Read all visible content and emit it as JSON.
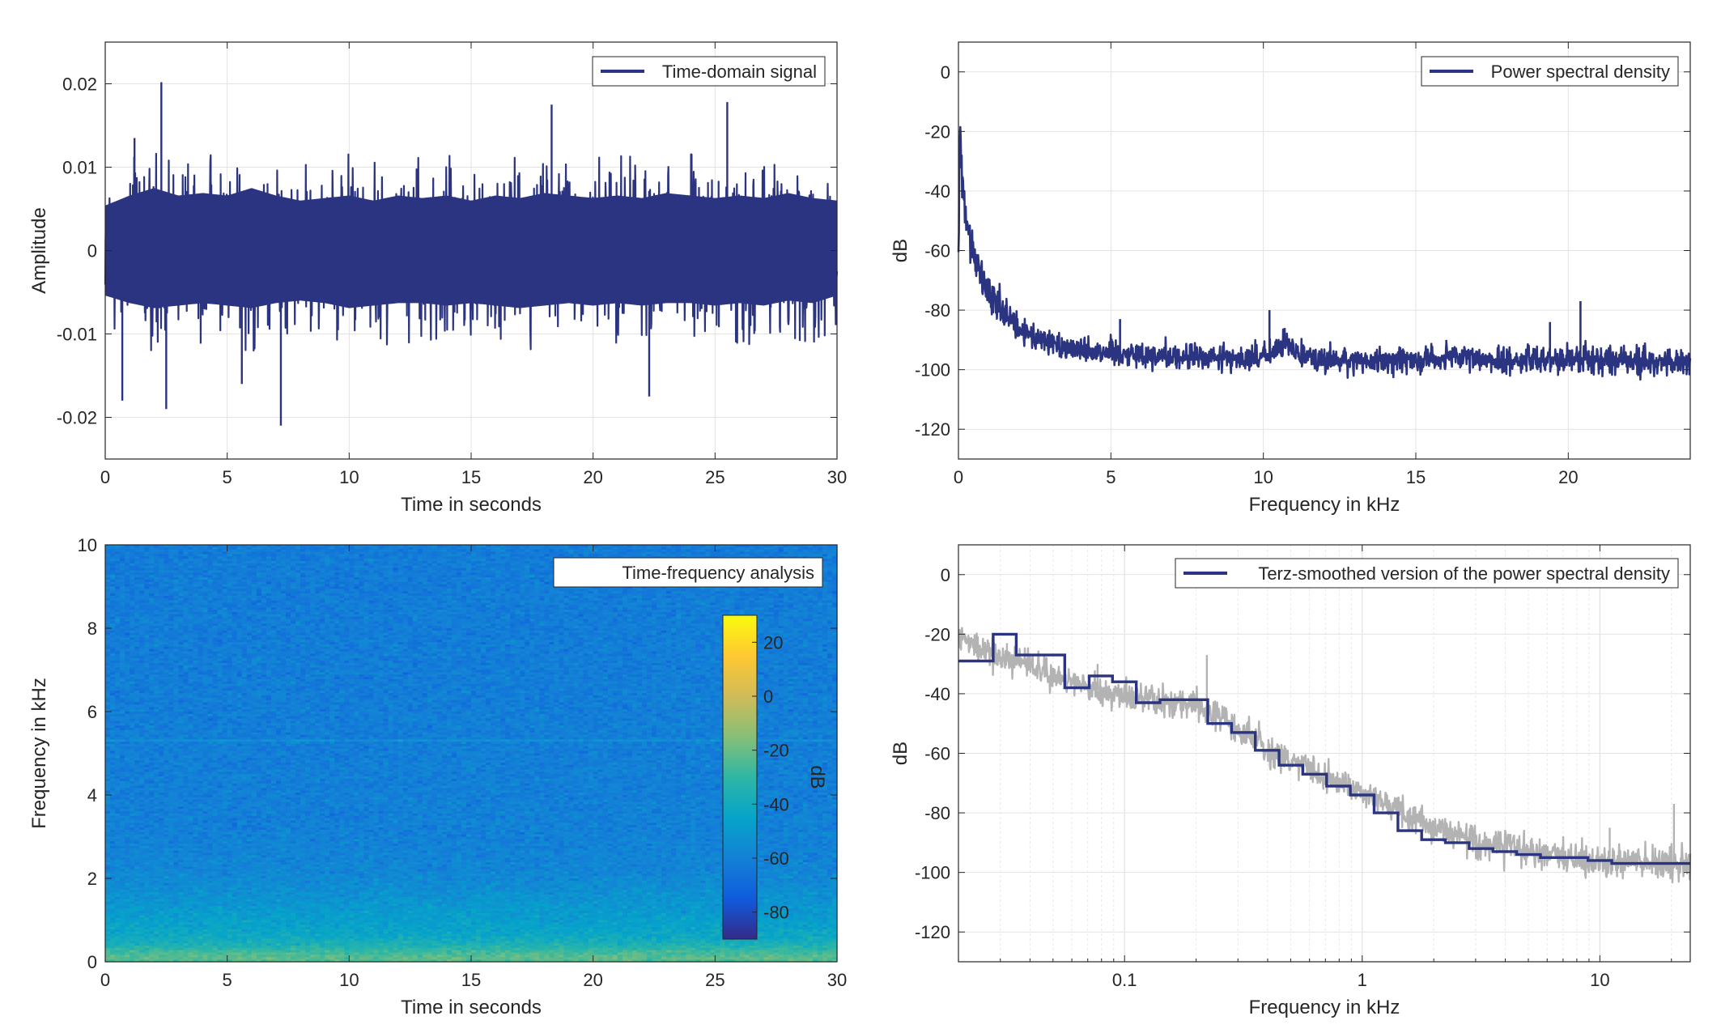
{
  "chart_data": [
    {
      "type": "line",
      "id": "time-domain",
      "title": "",
      "xlabel": "Time in seconds",
      "ylabel": "Amplitude",
      "xlim": [
        0,
        30
      ],
      "ylim": [
        -0.025,
        0.025
      ],
      "xticks": [
        0,
        5,
        10,
        15,
        20,
        25,
        30
      ],
      "xtick_labels": [
        "0",
        "5",
        "10",
        "15",
        "20",
        "25",
        "30"
      ],
      "yticks": [
        -0.02,
        -0.01,
        0,
        0.01,
        0.02
      ],
      "ytick_labels": [
        "-0.02",
        "-0.01",
        "0",
        "0.01",
        "0.02"
      ],
      "grid": true,
      "legend_position": "top-right",
      "series": [
        {
          "name": "Time-domain signal",
          "color": "#2b3480",
          "envelope_x": [
            0,
            1,
            2,
            3,
            4,
            5,
            6,
            7,
            8,
            9,
            10,
            11,
            12,
            13,
            14,
            15,
            16,
            17,
            18,
            19,
            20,
            21,
            22,
            23,
            24,
            25,
            26,
            27,
            28,
            29,
            30
          ],
          "envelope_upper": [
            0.009,
            0.011,
            0.0125,
            0.011,
            0.0115,
            0.011,
            0.0125,
            0.011,
            0.01,
            0.0105,
            0.011,
            0.01,
            0.011,
            0.0105,
            0.011,
            0.01,
            0.011,
            0.0105,
            0.0115,
            0.011,
            0.0105,
            0.011,
            0.0105,
            0.0115,
            0.011,
            0.0105,
            0.011,
            0.0105,
            0.0115,
            0.0105,
            0.01
          ],
          "envelope_lower": [
            -0.009,
            -0.0105,
            -0.0115,
            -0.011,
            -0.0105,
            -0.011,
            -0.0115,
            -0.0105,
            -0.01,
            -0.0105,
            -0.0115,
            -0.011,
            -0.0105,
            -0.0105,
            -0.011,
            -0.0105,
            -0.011,
            -0.0115,
            -0.011,
            -0.0105,
            -0.011,
            -0.0105,
            -0.011,
            -0.0105,
            -0.0105,
            -0.011,
            -0.0105,
            -0.011,
            -0.01,
            -0.0105,
            -0.009
          ],
          "peaks": [
            [
              2.3,
              0.0202
            ],
            [
              18.3,
              0.0175
            ],
            [
              25.5,
              0.0178
            ],
            [
              1.2,
              0.0135
            ],
            [
              7.2,
              -0.021
            ],
            [
              2.5,
              -0.019
            ],
            [
              0.7,
              -0.018
            ],
            [
              22.3,
              -0.0175
            ],
            [
              5.6,
              -0.016
            ]
          ]
        }
      ]
    },
    {
      "type": "line",
      "id": "psd",
      "title": "",
      "xlabel": "Frequency in kHz",
      "ylabel": "dB",
      "xlim": [
        0,
        24
      ],
      "ylim": [
        -130,
        10
      ],
      "xticks": [
        0,
        5,
        10,
        15,
        20
      ],
      "xtick_labels": [
        "0",
        "5",
        "10",
        "15",
        "20"
      ],
      "yticks": [
        -120,
        -100,
        -80,
        -60,
        -40,
        -20,
        0
      ],
      "ytick_labels": [
        "-120",
        "-100",
        "-80",
        "-60",
        "-40",
        "-20",
        "0"
      ],
      "grid": true,
      "legend_position": "top-right",
      "series": [
        {
          "name": "Power spectral density",
          "color": "#2b3480",
          "x": [
            0,
            0.05,
            0.1,
            0.15,
            0.2,
            0.3,
            0.4,
            0.5,
            0.7,
            1.0,
            1.5,
            2,
            3,
            4,
            5,
            6,
            8,
            10,
            10.7,
            12,
            14,
            16,
            18,
            20,
            22,
            24
          ],
          "y": [
            -60,
            -15,
            -30,
            -40,
            -45,
            -52,
            -58,
            -62,
            -68,
            -75,
            -82,
            -87,
            -91,
            -93,
            -94,
            -95,
            -96,
            -96,
            -92,
            -97,
            -97,
            -96,
            -97,
            -96,
            -97,
            -98
          ],
          "peaks": [
            [
              5.3,
              -83
            ],
            [
              10.2,
              -80
            ],
            [
              10.7,
              -86
            ],
            [
              16.0,
              -90
            ],
            [
              19.4,
              -84
            ],
            [
              20.4,
              -77
            ]
          ]
        }
      ]
    },
    {
      "type": "heatmap",
      "id": "spectrogram",
      "title": "",
      "xlabel": "Time in seconds",
      "ylabel": "Frequency in kHz",
      "xlim": [
        0,
        30
      ],
      "ylim": [
        0,
        10
      ],
      "xticks": [
        0,
        5,
        10,
        15,
        20,
        25,
        30
      ],
      "xtick_labels": [
        "0",
        "5",
        "10",
        "15",
        "20",
        "25",
        "30"
      ],
      "yticks": [
        0,
        2,
        4,
        6,
        8,
        10
      ],
      "ytick_labels": [
        "0",
        "2",
        "4",
        "6",
        "8",
        "10"
      ],
      "legend": "Time-frequency analysis",
      "legend_position": "top-right",
      "colorbar": {
        "label": "dB",
        "range": [
          -90,
          30
        ],
        "ticks": [
          -80,
          -60,
          -40,
          -20,
          0,
          20
        ],
        "tick_labels": [
          "-80",
          "-60",
          "-40",
          "-20",
          "0",
          "20"
        ],
        "colormap": "parula",
        "colormap_stops": [
          "#352a87",
          "#0f5cdd",
          "#1481d6",
          "#06a4ca",
          "#2eb7a4",
          "#87bf77",
          "#d1bb59",
          "#fec832",
          "#f9fb0e"
        ]
      },
      "frequency_profile_khz": [
        0,
        0.1,
        0.25,
        0.4,
        0.6,
        0.9,
        1.3,
        1.7,
        2.2,
        3,
        5,
        10
      ],
      "frequency_profile_db": [
        -25,
        -22,
        -28,
        -36,
        -42,
        -46,
        -50,
        -54,
        -58,
        -60,
        -61,
        -62
      ],
      "line_features_khz": [
        5.3
      ]
    },
    {
      "type": "line",
      "id": "terz",
      "title": "",
      "xlabel": "Frequency in kHz",
      "ylabel": "dB",
      "xscale": "log",
      "xlim": [
        0.02,
        24
      ],
      "ylim": [
        -130,
        10
      ],
      "xticks": [
        0.1,
        1,
        10
      ],
      "xtick_labels": [
        "0.1",
        "1",
        "10"
      ],
      "yticks": [
        -120,
        -100,
        -80,
        -60,
        -40,
        -20,
        0
      ],
      "ytick_labels": [
        "-120",
        "-100",
        "-80",
        "-60",
        "-40",
        "-20",
        "0"
      ],
      "grid": true,
      "legend_position": "top-right",
      "series": [
        {
          "name": "Terz-smoothed version of the power spectral density",
          "color": "#2b3480",
          "step_edges_khz": [
            0.02,
            0.028,
            0.035,
            0.045,
            0.056,
            0.071,
            0.089,
            0.112,
            0.141,
            0.178,
            0.224,
            0.282,
            0.355,
            0.447,
            0.562,
            0.708,
            0.891,
            1.122,
            1.413,
            1.778,
            2.239,
            2.818,
            3.548,
            4.467,
            5.623,
            7.079,
            8.913,
            11.22,
            24
          ],
          "step_values_db": [
            -29,
            -20,
            -27,
            -27,
            -38,
            -34,
            -36,
            -43,
            -42,
            -42,
            -50,
            -53,
            -59,
            -64,
            -67,
            -71,
            -74,
            -80,
            -86,
            -89,
            -90,
            -92,
            -93,
            -94,
            -95,
            -95,
            -96,
            -97
          ]
        },
        {
          "color": "#b3b3b3",
          "x": [
            0.02,
            0.03,
            0.04,
            0.05,
            0.07,
            0.1,
            0.15,
            0.2,
            0.3,
            0.4,
            0.5,
            0.7,
            1,
            1.5,
            2,
            3,
            5,
            7,
            10,
            15,
            24
          ],
          "y": [
            -21,
            -28,
            -30,
            -34,
            -38,
            -41,
            -43,
            -44,
            -52,
            -58,
            -63,
            -68,
            -73,
            -80,
            -86,
            -90,
            -93,
            -95,
            -96,
            -97,
            -98
          ],
          "peaks": [
            [
              0.032,
              -23
            ],
            [
              0.047,
              -28
            ],
            [
              0.077,
              -30
            ],
            [
              0.222,
              -27
            ],
            [
              2.9,
              -88
            ],
            [
              11,
              -85
            ],
            [
              20.5,
              -77
            ]
          ]
        }
      ]
    }
  ]
}
